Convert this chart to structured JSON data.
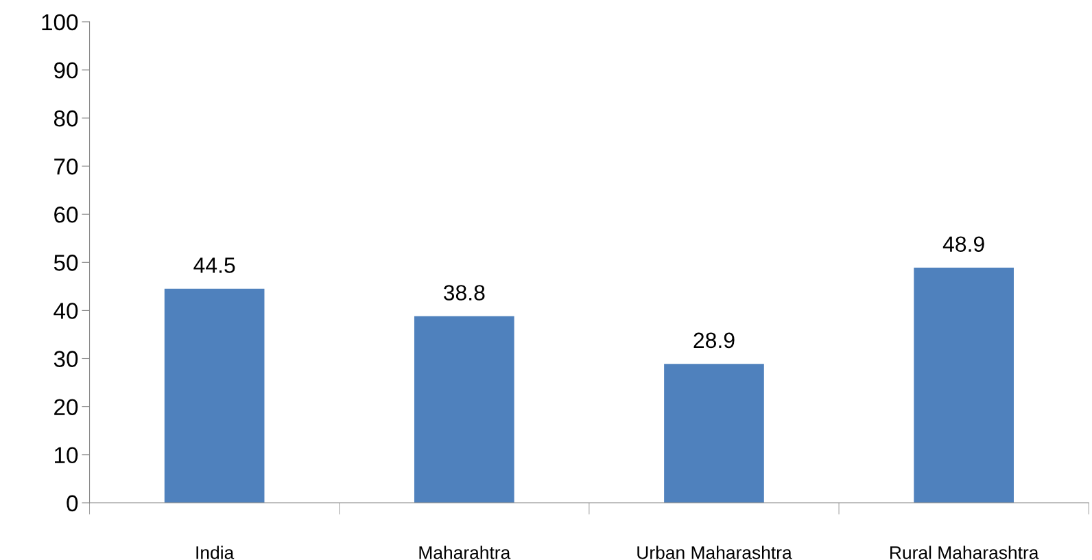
{
  "chart_data": {
    "type": "bar",
    "categories": [
      "India",
      "Maharahtra",
      "Urban Maharashtra",
      "Rural Maharashtra"
    ],
    "values": [
      44.5,
      38.8,
      28.9,
      48.9
    ],
    "color": "#4f81bd",
    "ylim": [
      0,
      100
    ],
    "yticks": [
      0,
      10,
      20,
      30,
      40,
      50,
      60,
      70,
      80,
      90,
      100
    ],
    "data_labels": true,
    "grid": false,
    "legend": false
  }
}
